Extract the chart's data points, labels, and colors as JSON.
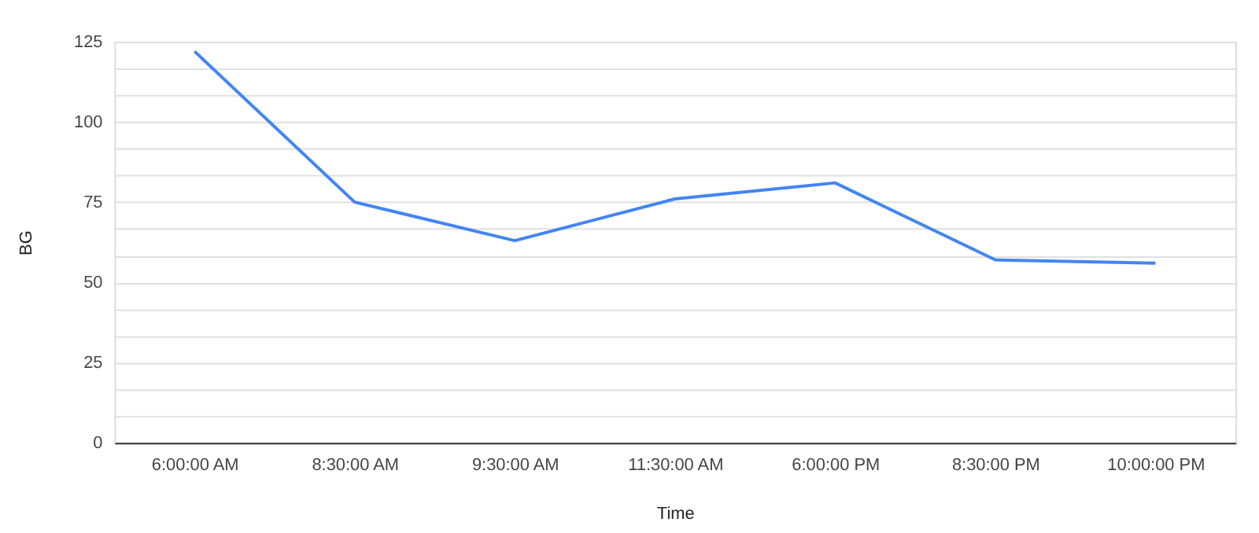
{
  "chart_data": {
    "type": "line",
    "categories": [
      "6:00:00 AM",
      "8:30:00 AM",
      "9:30:00 AM",
      "11:30:00 AM",
      "6:00:00 PM",
      "8:30:00 PM",
      "10:00:00 PM"
    ],
    "series": [
      {
        "color": "#4285f4",
        "values": [
          122,
          75,
          63,
          76,
          81,
          57,
          56
        ]
      }
    ],
    "xlabel": "Time",
    "ylabel": "BG",
    "ylim": [
      0,
      125
    ],
    "yticks": [
      0,
      {
        "value": 8.333,
        "label": null
      },
      {
        "value": 16.667,
        "label": null
      },
      25,
      {
        "value": 33.333,
        "label": null
      },
      {
        "value": 41.667,
        "label": null
      },
      50,
      {
        "value": 58.333,
        "label": null
      },
      {
        "value": 66.667,
        "label": null
      },
      75,
      {
        "value": 83.333,
        "label": null
      },
      {
        "value": 91.667,
        "label": null
      },
      100,
      {
        "value": 108.333,
        "label": null
      },
      {
        "value": 116.667,
        "label": null
      },
      125
    ],
    "grid": "y",
    "legend": false,
    "marker": "none",
    "line_style": "solid"
  }
}
